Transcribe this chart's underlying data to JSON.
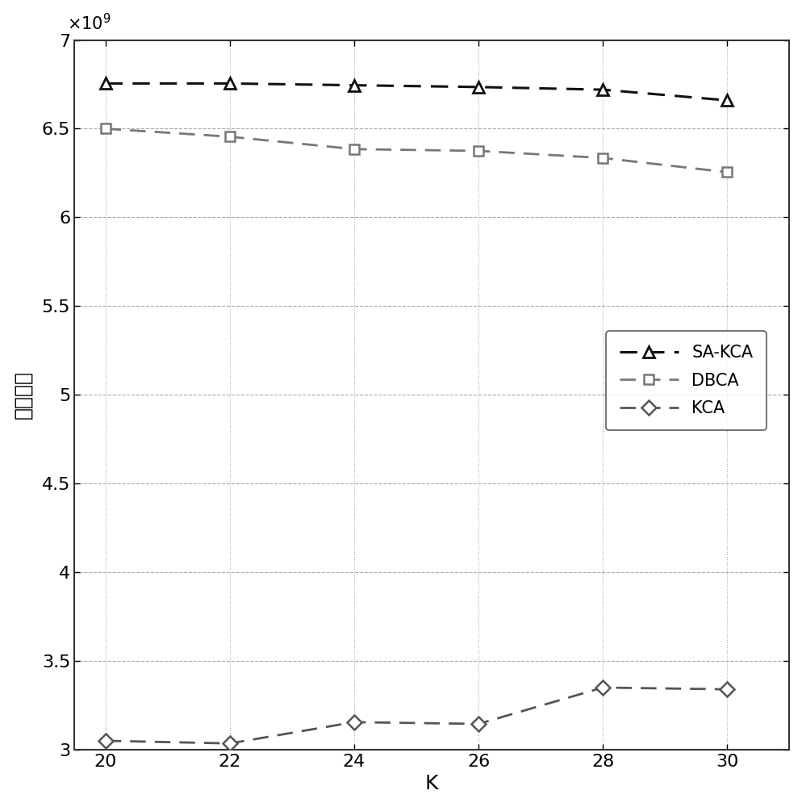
{
  "x": [
    20,
    22,
    24,
    26,
    28,
    30
  ],
  "sa_kca": [
    6755000000.0,
    6755000000.0,
    6745000000.0,
    6735000000.0,
    6720000000.0,
    6660000000.0
  ],
  "dbca": [
    6500000000.0,
    6455000000.0,
    6385000000.0,
    6375000000.0,
    6335000000.0,
    6255000000.0
  ],
  "kca": [
    3050000000.0,
    3035000000.0,
    3155000000.0,
    3145000000.0,
    3350000000.0,
    3340000000.0
  ],
  "sa_kca_color": "#111111",
  "dbca_color": "#777777",
  "kca_color": "#555555",
  "xlabel": "K",
  "ylabel": "系统效用",
  "ylim": [
    3000000000.0,
    7000000000.0
  ],
  "xlim": [
    19.5,
    31
  ],
  "yticks": [
    3000000000.0,
    3500000000.0,
    4000000000.0,
    4500000000.0,
    5000000000.0,
    5500000000.0,
    6000000000.0,
    6500000000.0,
    7000000000.0
  ],
  "xticks": [
    20,
    22,
    24,
    26,
    28,
    30
  ],
  "legend_labels": [
    "SA-KCA",
    "DBCA",
    "KCA"
  ],
  "grid_h_color": "#aaaaaa",
  "grid_v_color": "#aaaaaa",
  "background_color": "#ffffff"
}
